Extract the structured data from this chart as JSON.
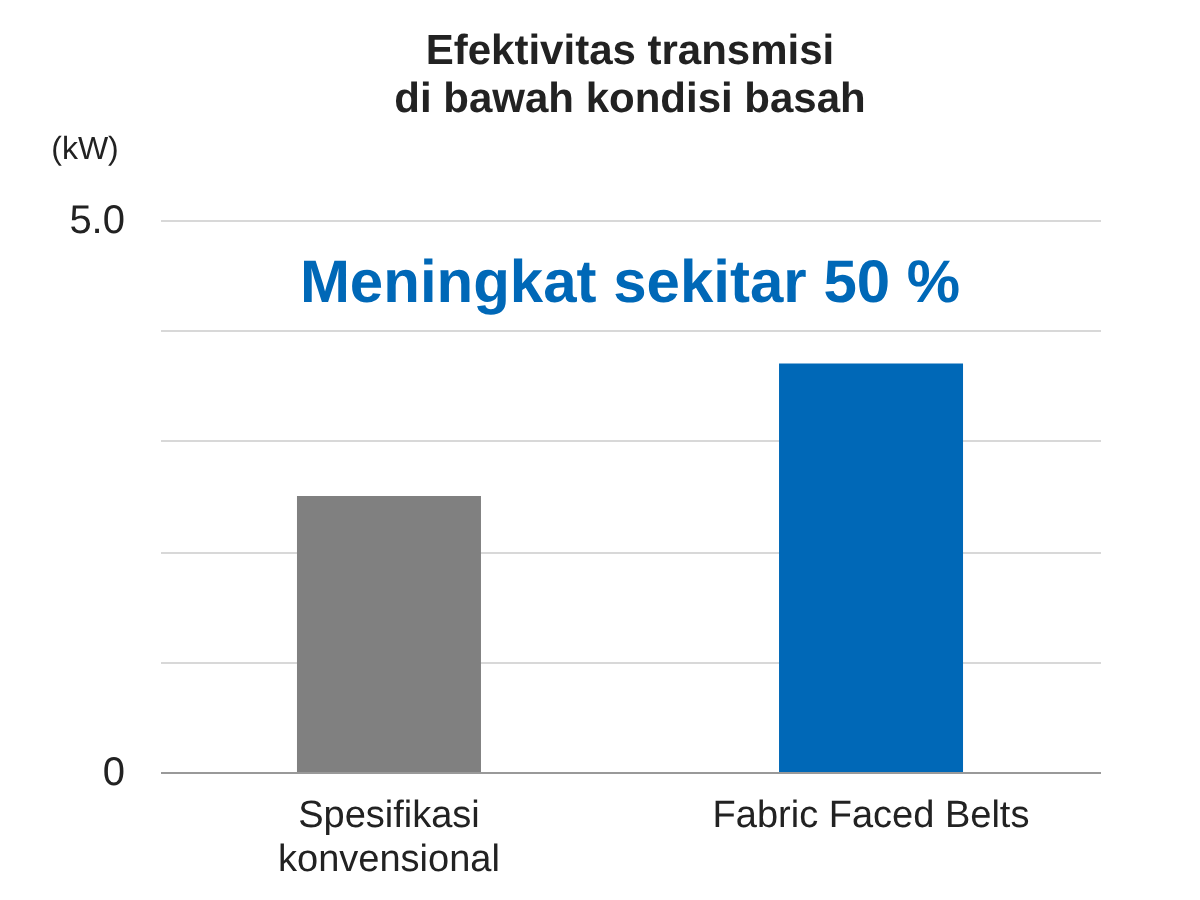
{
  "chart_data": {
    "type": "bar",
    "title": "Efektivitas transmisi\ndi bawah kondisi basah",
    "ylabel": "(kW)",
    "categories": [
      "Spesifikasi konvensional",
      "Fabric Faced Belts"
    ],
    "values": [
      2.5,
      3.7
    ],
    "colors": [
      "#808080",
      "#0068b7"
    ],
    "ylim": [
      0,
      5
    ],
    "yticks": [
      0,
      {
        "value": 1,
        "label": null
      },
      {
        "value": 2,
        "label": null
      },
      {
        "value": 3,
        "label": null
      },
      {
        "value": 4,
        "label": null
      },
      {
        "value": 5,
        "label": "5.0"
      }
    ],
    "grid": "y",
    "annotations": [
      "Meningkat sekitar 50 %"
    ]
  }
}
